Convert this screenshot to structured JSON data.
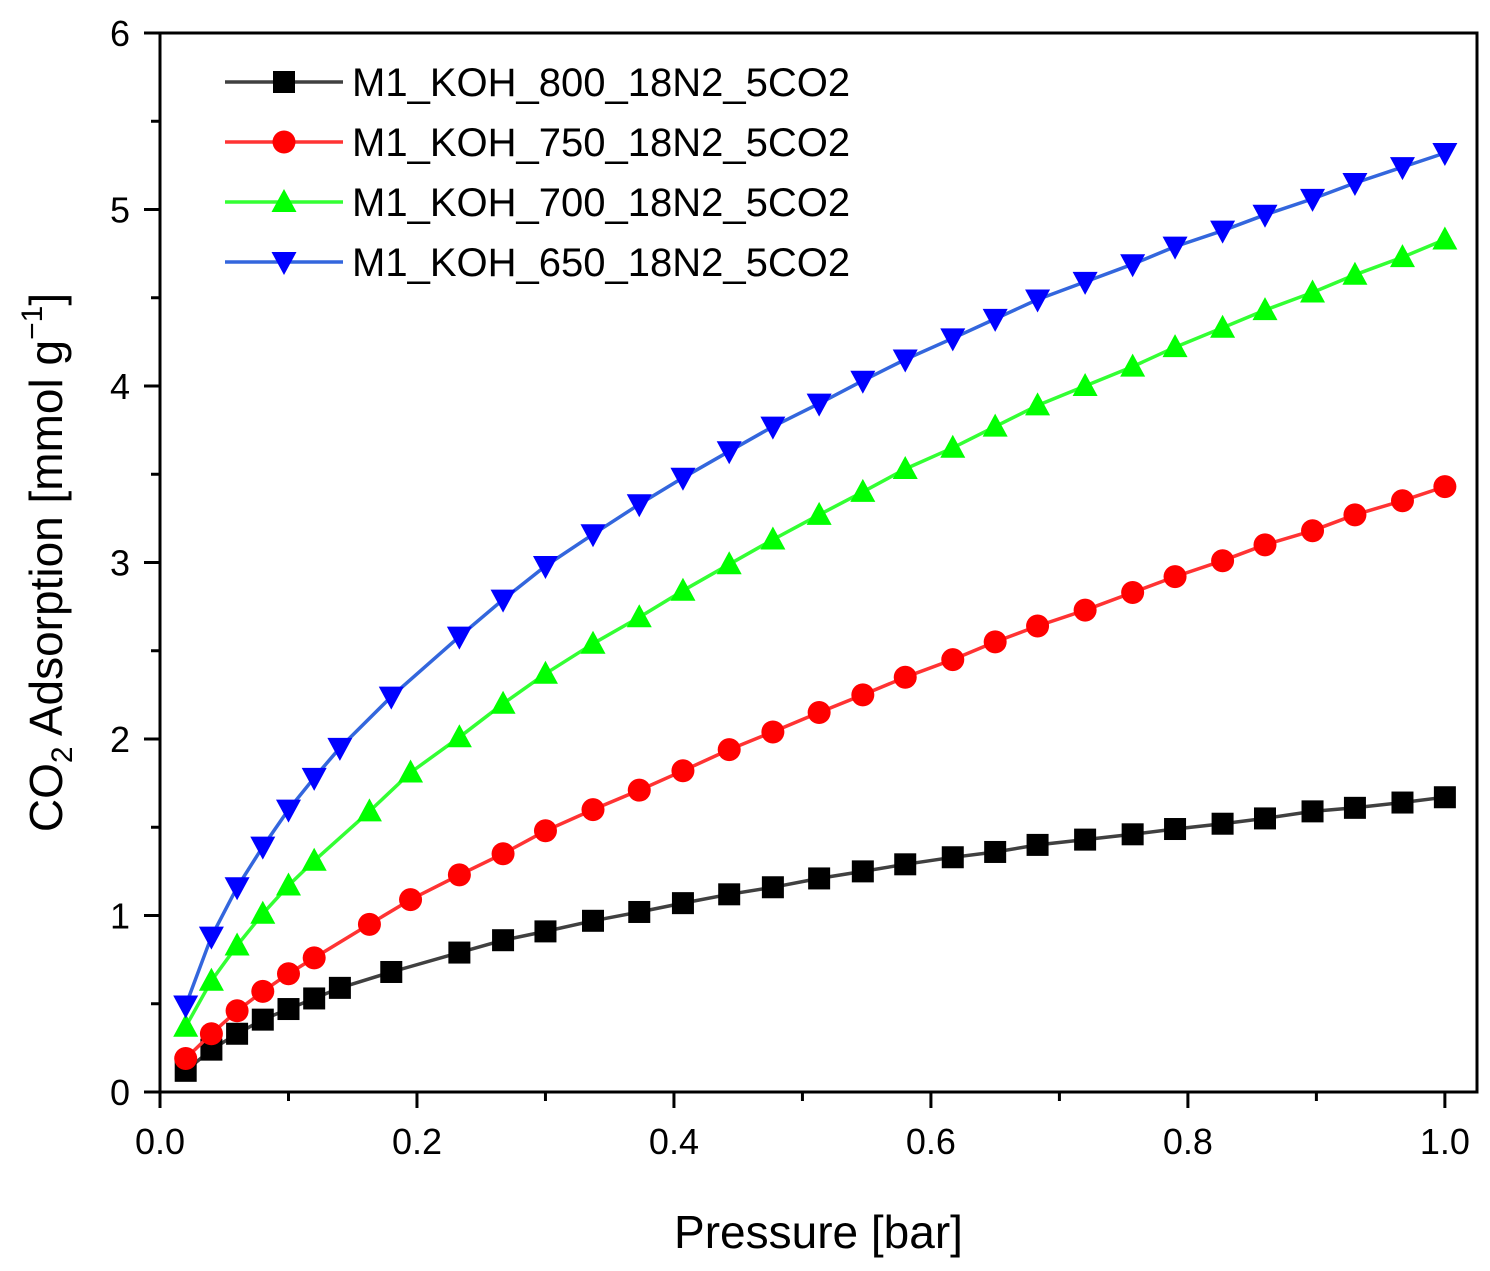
{
  "chart_data": {
    "type": "line",
    "xlabel": "Pressure [bar]",
    "ylabel": {
      "main": "CO",
      "sub": "2",
      "rest": " Adsorption [mmol g",
      "sup": "−1",
      "close": "]"
    },
    "xlim": [
      0.0,
      1.025
    ],
    "ylim": [
      0,
      6
    ],
    "x_ticks": [
      0.0,
      0.2,
      0.4,
      0.6,
      0.8,
      1.0
    ],
    "x_tick_labels": [
      "0.0",
      "0.2",
      "0.4",
      "0.6",
      "0.8",
      "1.0"
    ],
    "y_ticks": [
      0,
      1,
      2,
      3,
      4,
      5,
      6
    ],
    "y_tick_labels": [
      "0",
      "1",
      "2",
      "3",
      "4",
      "5",
      "6"
    ],
    "grid": false,
    "legend_position": "top-left",
    "x": [
      0.02,
      0.04,
      0.06,
      0.08,
      0.1,
      0.12,
      0.14,
      0.16,
      0.18,
      0.2,
      0.233,
      0.267,
      0.3,
      0.337,
      0.373,
      0.407,
      0.443,
      0.477,
      0.513,
      0.547,
      0.58,
      0.617,
      0.65,
      0.683,
      0.72,
      0.757,
      0.79,
      0.827,
      0.86,
      0.897,
      0.93,
      0.967,
      1.0
    ],
    "series": [
      {
        "name": "M1_KOH_800_18N2_5CO2",
        "color": "#000000",
        "line_color": "#404040",
        "marker": "square",
        "x": [
          0.02,
          0.04,
          0.06,
          0.08,
          0.1,
          0.12,
          0.14,
          0.18,
          0.233,
          0.267,
          0.3,
          0.337,
          0.373,
          0.407,
          0.443,
          0.477,
          0.513,
          0.547,
          0.58,
          0.617,
          0.65,
          0.683,
          0.72,
          0.757,
          0.79,
          0.827,
          0.86,
          0.897,
          0.93,
          0.967,
          1.0
        ],
        "values": [
          0.12,
          0.24,
          0.33,
          0.41,
          0.47,
          0.53,
          0.59,
          0.68,
          0.79,
          0.86,
          0.91,
          0.97,
          1.02,
          1.07,
          1.12,
          1.16,
          1.21,
          1.25,
          1.29,
          1.33,
          1.36,
          1.4,
          1.43,
          1.46,
          1.49,
          1.52,
          1.55,
          1.59,
          1.61,
          1.64,
          1.67
        ]
      },
      {
        "name": "M1_KOH_750_18N2_5CO2",
        "color": "#ff0000",
        "line_color": "#ff3333",
        "marker": "circle",
        "x": [
          0.02,
          0.04,
          0.06,
          0.08,
          0.1,
          0.12,
          0.163,
          0.195,
          0.233,
          0.267,
          0.3,
          0.337,
          0.373,
          0.407,
          0.443,
          0.477,
          0.513,
          0.547,
          0.58,
          0.617,
          0.65,
          0.683,
          0.72,
          0.757,
          0.79,
          0.827,
          0.86,
          0.897,
          0.93,
          0.967,
          1.0
        ],
        "values": [
          0.19,
          0.33,
          0.46,
          0.57,
          0.67,
          0.76,
          0.95,
          1.09,
          1.23,
          1.35,
          1.48,
          1.6,
          1.71,
          1.82,
          1.94,
          2.04,
          2.15,
          2.25,
          2.35,
          2.45,
          2.55,
          2.64,
          2.73,
          2.83,
          2.92,
          3.01,
          3.1,
          3.18,
          3.27,
          3.35,
          3.43
        ]
      },
      {
        "name": "M1_KOH_700_18N2_5CO2",
        "color": "#00ff00",
        "line_color": "#33ff33",
        "marker": "triangle-up",
        "x": [
          0.02,
          0.04,
          0.06,
          0.08,
          0.1,
          0.12,
          0.163,
          0.195,
          0.233,
          0.267,
          0.3,
          0.337,
          0.373,
          0.407,
          0.443,
          0.477,
          0.513,
          0.547,
          0.58,
          0.617,
          0.65,
          0.683,
          0.72,
          0.757,
          0.79,
          0.827,
          0.86,
          0.897,
          0.93,
          0.967,
          1.0
        ],
        "values": [
          0.37,
          0.63,
          0.83,
          1.01,
          1.17,
          1.31,
          1.59,
          1.81,
          2.01,
          2.2,
          2.37,
          2.54,
          2.69,
          2.84,
          2.99,
          3.13,
          3.27,
          3.4,
          3.53,
          3.65,
          3.77,
          3.89,
          4.0,
          4.11,
          4.22,
          4.33,
          4.43,
          4.53,
          4.63,
          4.73,
          4.83
        ]
      },
      {
        "name": "M1_KOH_650_18N2_5CO2",
        "color": "#0000ff",
        "line_color": "#3366dd",
        "marker": "triangle-down",
        "x": [
          0.02,
          0.04,
          0.06,
          0.08,
          0.1,
          0.12,
          0.14,
          0.18,
          0.233,
          0.267,
          0.3,
          0.337,
          0.373,
          0.407,
          0.443,
          0.477,
          0.513,
          0.547,
          0.58,
          0.617,
          0.65,
          0.683,
          0.72,
          0.757,
          0.79,
          0.827,
          0.86,
          0.897,
          0.93,
          0.967,
          1.0
        ],
        "values": [
          0.49,
          0.88,
          1.16,
          1.39,
          1.6,
          1.78,
          1.95,
          2.24,
          2.58,
          2.79,
          2.98,
          3.16,
          3.33,
          3.48,
          3.63,
          3.77,
          3.9,
          4.03,
          4.15,
          4.27,
          4.38,
          4.49,
          4.59,
          4.69,
          4.79,
          4.88,
          4.97,
          5.06,
          5.15,
          5.24,
          5.32
        ]
      }
    ]
  }
}
